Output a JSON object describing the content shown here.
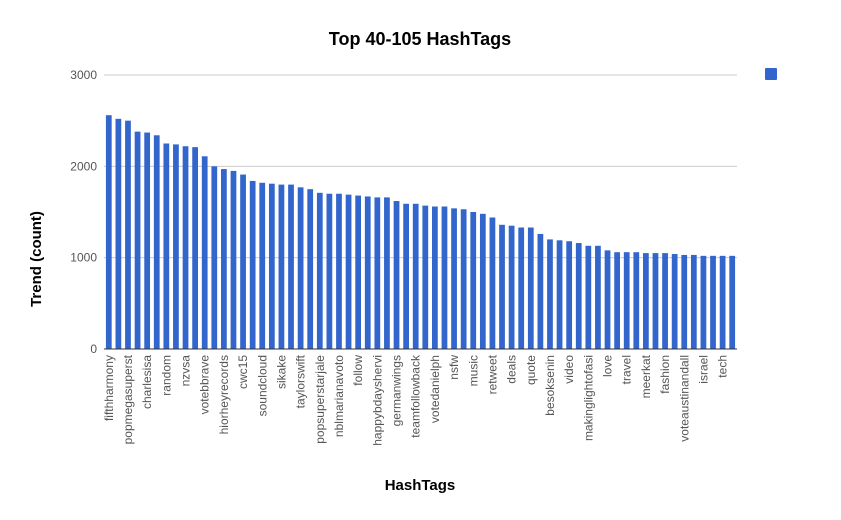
{
  "chart_data": {
    "type": "bar",
    "title": "Top 40-105 HashTags",
    "xlabel": "HashTags",
    "ylabel": "Trend (count)",
    "ylim": [
      0,
      3000
    ],
    "yticks": [
      0,
      1000,
      2000,
      3000
    ],
    "grid": true,
    "legend": "top-right",
    "bar_color": "#3366cc",
    "categories": [
      "fifthharmony",
      "",
      "popmegasuperst",
      "",
      "charlesisa",
      "",
      "random",
      "",
      "nzvsa",
      "",
      "votebbrave",
      "",
      "hiorheyrecords",
      "",
      "cwc15",
      "",
      "soundcloud",
      "",
      "sikake",
      "",
      "taylorswift",
      "",
      "popsuperstarjale",
      "",
      "nblmarianavoto",
      "",
      "follow",
      "",
      "happybdayshervi",
      "",
      "germanwings",
      "",
      "teamfollowback",
      "",
      "votedanielph",
      "",
      "nsfw",
      "",
      "music",
      "",
      "retweet",
      "",
      "deals",
      "",
      "quote",
      "",
      "besoksenin",
      "",
      "video",
      "",
      "makinglightofasi",
      "",
      "love",
      "",
      "travel",
      "",
      "meerkat",
      "",
      "fashion",
      "",
      "voteaustinandall",
      "",
      "israel",
      "",
      "tech",
      ""
    ],
    "values": [
      2560,
      2520,
      2500,
      2380,
      2370,
      2340,
      2250,
      2240,
      2220,
      2210,
      2110,
      2000,
      1970,
      1950,
      1910,
      1840,
      1820,
      1810,
      1800,
      1800,
      1770,
      1750,
      1710,
      1700,
      1700,
      1690,
      1680,
      1670,
      1660,
      1660,
      1620,
      1590,
      1590,
      1570,
      1560,
      1560,
      1540,
      1530,
      1500,
      1480,
      1440,
      1360,
      1350,
      1330,
      1330,
      1260,
      1200,
      1190,
      1180,
      1160,
      1130,
      1130,
      1080,
      1060,
      1060,
      1060,
      1050,
      1050,
      1050,
      1040,
      1030,
      1030,
      1020,
      1020,
      1020,
      1020
    ]
  }
}
